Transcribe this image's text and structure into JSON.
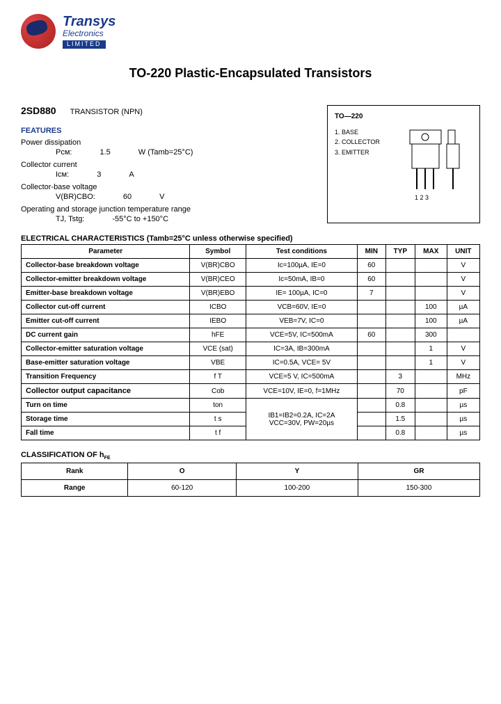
{
  "company": {
    "name": "Transys",
    "sub": "Electronics",
    "tag": "LIMITED"
  },
  "title": "TO-220 Plastic-Encapsulated Transistors",
  "part": {
    "num": "2SD880",
    "type": "TRANSISTOR (NPN)"
  },
  "features_hdr": "FEATURES",
  "features": {
    "pd_label": "Power dissipation",
    "pd_sym": "Pᴄᴍ:",
    "pd_val": "1.5",
    "pd_unit": "W (Tamb=25°C)",
    "ic_label": "Collector current",
    "ic_sym": "Iᴄᴍ:",
    "ic_val": "3",
    "ic_unit": "A",
    "vcb_label": "Collector-base voltage",
    "vcb_sym": "V(BR)CBO:",
    "vcb_val": "60",
    "vcb_unit": "V",
    "temp_label": "Operating and storage junction temperature range",
    "temp_sym": "TJ, Tstg:",
    "temp_val": "-55°C to +150°C"
  },
  "package": {
    "title": "TO—220",
    "pin1": "1. BASE",
    "pin2": "2. COLLECTOR",
    "pin3": "3. EMITTER",
    "pinlabels": "1 2 3"
  },
  "elec_hdr": "ELECTRICAL CHARACTERISTICS (Tamb=25°C    unless   otherwise   specified)",
  "elec_cols": [
    "Parameter",
    "Symbol",
    "Test   conditions",
    "MIN",
    "TYP",
    "MAX",
    "UNIT"
  ],
  "elec_rows": [
    {
      "p": "Collector-base breakdown voltage",
      "s": "V(BR)CBO",
      "tc": "Ic=100µA, IE=0",
      "min": "60",
      "typ": "",
      "max": "",
      "u": "V",
      "bold": true
    },
    {
      "p": "Collector-emitter breakdown voltage",
      "s": "V(BR)CEO",
      "tc": "Ic=50mA, IB=0",
      "min": "60",
      "typ": "",
      "max": "",
      "u": "V",
      "bold": true
    },
    {
      "p": "Emitter-base breakdown voltage",
      "s": "V(BR)EBO",
      "tc": "IE= 100µA, IC=0",
      "min": "7",
      "typ": "",
      "max": "",
      "u": "V",
      "bold": true
    },
    {
      "p": "Collector cut-off current",
      "s": "ICBO",
      "tc": "VCB=60V, IE=0",
      "min": "",
      "typ": "",
      "max": "100",
      "u": "µA",
      "bold": true
    },
    {
      "p": "Emitter cut-off current",
      "s": "IEBO",
      "tc": "VEB=7V, IC=0",
      "min": "",
      "typ": "",
      "max": "100",
      "u": "µA",
      "bold": true,
      "noborder": true
    },
    {
      "p": "DC current gain",
      "s": "hFE",
      "tc": "VCE=5V, IC=500mA",
      "min": "60",
      "typ": "",
      "max": "300",
      "u": "",
      "bold": true
    },
    {
      "p": "Collector-emitter saturation voltage",
      "s": "VCE (sat)",
      "tc": "IC=3A, IB=300mA",
      "min": "",
      "typ": "",
      "max": "1",
      "u": "V",
      "bold": true
    },
    {
      "p": "Base-emitter saturation voltage",
      "s": "VBE",
      "tc": "IC=0.5A, VCE= 5V",
      "min": "",
      "typ": "",
      "max": "1",
      "u": "V",
      "bold": true,
      "noborder": true
    },
    {
      "p": "Transition Frequency",
      "s": "f T",
      "tc": "VCE=5 V, IC=500mA",
      "min": "",
      "typ": "3",
      "max": "",
      "u": "MHz",
      "bold": true
    },
    {
      "p": "Collector output capacitance",
      "s": "Cob",
      "tc": "VCE=10V, IE=0, f=1MHz",
      "min": "",
      "typ": "70",
      "max": "",
      "u": "pF",
      "bold": true,
      "bigbold": true
    },
    {
      "p": "Turn on time",
      "s": "ton",
      "tc": "",
      "min": "",
      "typ": "0.8",
      "max": "",
      "u": "µs",
      "bold": true,
      "merged": true
    },
    {
      "p": "Storage time",
      "s": "t s",
      "tc": "",
      "min": "",
      "typ": "1.5",
      "max": "",
      "u": "µs",
      "bold": true
    },
    {
      "p": "Fall time",
      "s": "t f",
      "tc": "",
      "min": "",
      "typ": "0.8",
      "max": "",
      "u": "µs",
      "bold": true
    }
  ],
  "merged_tc": "IB1=IB2=0.2A, IC=2A\nVCC=30V, PW=20µs",
  "class_hdr": "CLASSIFICATION OF hFE",
  "class_cols": [
    "Rank",
    "O",
    "Y",
    "GR"
  ],
  "class_row": [
    "Range",
    "60-120",
    "100-200",
    "150-300"
  ],
  "colors": {
    "brand_blue": "#1a3a8a",
    "globe_red": "#b02020",
    "text": "#000000",
    "bg": "#ffffff"
  }
}
